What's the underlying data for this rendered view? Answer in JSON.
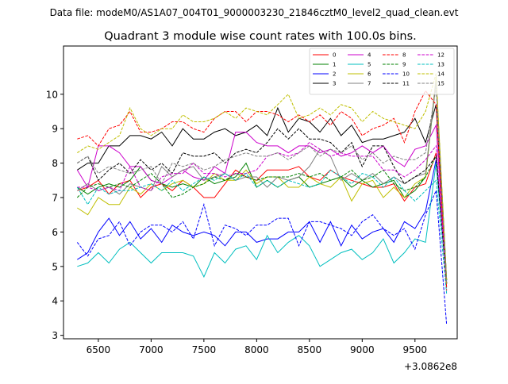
{
  "figure": {
    "suptitle": "Data file: modeM0/AS1A07_004T01_9000003230_21846cztM0_level2_quad_clean.evt"
  },
  "chart_data": {
    "type": "line",
    "title": "Quadrant 3 module wise count rates with 100.0s bins.",
    "xlabel": "",
    "ylabel": "",
    "x_offset_label": "+3.0862e8",
    "xlim": [
      6170,
      9900
    ],
    "ylim": [
      2.9,
      11.4
    ],
    "x_ticks": [
      6500,
      7000,
      7500,
      8000,
      8500,
      9000,
      9500
    ],
    "y_ticks": [
      3,
      4,
      5,
      6,
      7,
      8,
      9,
      10
    ],
    "grid": false,
    "legend_position": "top-right",
    "x": [
      6300,
      6400,
      6500,
      6600,
      6700,
      6800,
      6900,
      7000,
      7100,
      7200,
      7300,
      7400,
      7500,
      7600,
      7700,
      7800,
      7900,
      8000,
      8100,
      8200,
      8300,
      8400,
      8500,
      8600,
      8700,
      8800,
      8900,
      9000,
      9100,
      9200,
      9300,
      9400,
      9500,
      9600,
      9700,
      9800
    ],
    "series": [
      {
        "name": "0",
        "color": "#ff0000",
        "dash": "solid",
        "values": [
          7.2,
          7.3,
          7.5,
          7.1,
          7.4,
          7.5,
          7.0,
          7.3,
          7.4,
          7.2,
          7.5,
          7.3,
          7.0,
          7.0,
          7.4,
          7.8,
          7.6,
          7.5,
          7.8,
          7.8,
          7.8,
          7.9,
          7.6,
          7.5,
          7.8,
          7.6,
          7.5,
          7.4,
          7.3,
          7.3,
          7.4,
          6.9,
          7.3,
          7.4,
          8.3,
          4.4
        ]
      },
      {
        "name": "1",
        "color": "#008000",
        "dash": "solid",
        "values": [
          7.3,
          7.1,
          7.3,
          7.4,
          7.3,
          7.5,
          7.9,
          7.5,
          7.4,
          7.3,
          7.4,
          7.3,
          7.6,
          7.4,
          7.5,
          7.6,
          8.0,
          7.3,
          7.5,
          7.3,
          7.5,
          7.6,
          7.3,
          7.4,
          7.5,
          7.6,
          7.3,
          7.5,
          7.3,
          7.4,
          7.5,
          7.0,
          7.2,
          7.6,
          10.4,
          4.6
        ]
      },
      {
        "name": "2",
        "color": "#0000ff",
        "dash": "solid",
        "values": [
          5.2,
          5.4,
          6.0,
          6.4,
          5.9,
          6.3,
          5.8,
          6.1,
          5.7,
          6.2,
          6.0,
          5.9,
          6.0,
          5.9,
          5.6,
          6.0,
          6.0,
          5.7,
          5.8,
          5.8,
          6.0,
          6.0,
          6.3,
          5.7,
          6.3,
          5.6,
          6.2,
          5.8,
          6.0,
          6.1,
          5.7,
          6.3,
          6.1,
          6.6,
          8.1,
          4.5
        ]
      },
      {
        "name": "3",
        "color": "#000000",
        "dash": "solid",
        "values": [
          7.8,
          8.0,
          8.0,
          8.5,
          8.5,
          8.8,
          8.8,
          8.7,
          8.9,
          8.5,
          9.0,
          8.7,
          8.7,
          8.9,
          9.0,
          8.8,
          8.9,
          9.1,
          8.8,
          9.6,
          8.9,
          9.3,
          9.2,
          8.9,
          9.3,
          8.8,
          9.1,
          8.6,
          8.7,
          8.7,
          8.8,
          8.9,
          9.3,
          8.6,
          9.7,
          4.5
        ]
      },
      {
        "name": "4",
        "color": "#cc00cc",
        "dash": "solid",
        "values": [
          7.8,
          7.3,
          8.5,
          8.5,
          8.3,
          7.9,
          7.9,
          7.5,
          7.4,
          7.6,
          7.8,
          7.6,
          7.5,
          7.9,
          7.7,
          8.9,
          8.9,
          8.6,
          8.5,
          8.5,
          8.3,
          8.5,
          8.5,
          8.3,
          8.4,
          8.2,
          8.3,
          8.5,
          8.3,
          8.5,
          8.1,
          7.9,
          8.4,
          8.5,
          9.1,
          4.5
        ]
      },
      {
        "name": "5",
        "color": "#00bfbf",
        "dash": "solid",
        "values": [
          5.0,
          5.1,
          5.4,
          5.1,
          5.5,
          5.7,
          5.4,
          5.1,
          5.4,
          5.4,
          5.4,
          5.3,
          4.7,
          5.4,
          5.1,
          5.5,
          5.6,
          5.2,
          5.9,
          5.4,
          5.7,
          5.9,
          5.6,
          5.0,
          5.2,
          5.4,
          5.5,
          5.2,
          5.4,
          5.8,
          5.1,
          5.4,
          5.8,
          5.7,
          8.0,
          4.5
        ]
      },
      {
        "name": "6",
        "color": "#bfbf00",
        "dash": "solid",
        "values": [
          6.7,
          6.5,
          7.0,
          6.8,
          6.8,
          7.3,
          7.1,
          7.4,
          7.2,
          7.4,
          7.5,
          7.3,
          7.4,
          7.7,
          7.5,
          7.5,
          7.8,
          7.4,
          7.6,
          7.6,
          7.3,
          7.3,
          7.6,
          7.4,
          7.3,
          7.6,
          6.9,
          7.4,
          7.5,
          7.0,
          7.3,
          7.0,
          7.4,
          7.6,
          10.5,
          4.6
        ]
      },
      {
        "name": "7",
        "color": "#808080",
        "dash": "solid",
        "values": [
          7.2,
          7.4,
          7.2,
          7.3,
          7.1,
          7.4,
          7.3,
          7.2,
          7.9,
          7.6,
          7.8,
          7.9,
          7.5,
          7.6,
          7.7,
          7.5,
          7.6,
          7.6,
          7.3,
          7.6,
          7.5,
          7.6,
          7.9,
          8.4,
          8.2,
          7.5,
          7.7,
          7.5,
          7.7,
          7.4,
          7.6,
          7.4,
          7.6,
          7.7,
          10.4,
          4.6
        ]
      },
      {
        "name": "8",
        "color": "#ff0000",
        "dash": "dashed",
        "values": [
          8.7,
          8.8,
          8.5,
          9.0,
          9.1,
          9.5,
          8.9,
          8.9,
          9.0,
          9.2,
          9.2,
          9.0,
          8.9,
          9.3,
          9.5,
          9.5,
          9.2,
          9.5,
          9.5,
          9.4,
          9.2,
          9.4,
          9.2,
          9.4,
          9.1,
          9.5,
          9.3,
          8.8,
          9.0,
          9.1,
          9.3,
          8.6,
          9.5,
          10.1,
          9.7,
          4.3
        ]
      },
      {
        "name": "9",
        "color": "#008000",
        "dash": "dashed",
        "values": [
          7.0,
          7.3,
          7.4,
          7.3,
          7.4,
          7.3,
          7.5,
          7.7,
          7.4,
          7.0,
          7.1,
          7.3,
          7.4,
          7.6,
          7.5,
          7.7,
          7.6,
          7.5,
          7.6,
          7.6,
          7.6,
          7.7,
          7.6,
          7.7,
          7.5,
          7.6,
          7.8,
          7.5,
          7.6,
          7.8,
          7.4,
          7.2,
          7.3,
          7.6,
          8.2,
          4.6
        ]
      },
      {
        "name": "10",
        "color": "#0000ff",
        "dash": "dashed",
        "values": [
          5.7,
          5.3,
          5.8,
          5.9,
          6.3,
          5.6,
          6.0,
          6.2,
          6.2,
          6.0,
          6.3,
          5.8,
          6.8,
          5.6,
          6.2,
          6.1,
          5.9,
          6.2,
          6.2,
          6.4,
          6.4,
          5.6,
          6.3,
          6.3,
          6.2,
          6.1,
          5.9,
          6.3,
          6.5,
          6.1,
          5.9,
          6.1,
          5.5,
          6.5,
          7.2,
          3.3
        ]
      },
      {
        "name": "11",
        "color": "#000000",
        "dash": "dashed",
        "values": [
          8.0,
          8.2,
          7.5,
          7.8,
          8.0,
          7.7,
          8.1,
          7.8,
          8.0,
          7.7,
          8.3,
          8.2,
          8.2,
          8.3,
          8.0,
          8.3,
          8.4,
          8.3,
          8.6,
          9.0,
          8.7,
          9.0,
          8.7,
          8.7,
          8.6,
          8.3,
          8.6,
          7.9,
          8.5,
          8.5,
          7.9,
          7.4,
          7.6,
          7.8,
          8.2,
          4.5
        ]
      },
      {
        "name": "12",
        "color": "#cc00cc",
        "dash": "dashed",
        "values": [
          7.3,
          7.3,
          7.2,
          7.3,
          7.2,
          7.9,
          7.3,
          7.2,
          7.6,
          7.7,
          7.7,
          8.0,
          7.7,
          7.7,
          7.6,
          7.7,
          7.7,
          7.8,
          8.2,
          8.3,
          8.2,
          8.3,
          8.6,
          8.4,
          8.2,
          8.3,
          8.2,
          8.2,
          8.2,
          7.8,
          7.8,
          7.6,
          7.8,
          8.1,
          8.5,
          4.5
        ]
      },
      {
        "name": "13",
        "color": "#00bfbf",
        "dash": "dashed",
        "values": [
          7.3,
          6.8,
          7.3,
          7.1,
          7.2,
          7.2,
          7.3,
          7.4,
          7.2,
          7.5,
          7.2,
          7.4,
          7.6,
          7.5,
          7.7,
          7.5,
          7.7,
          7.3,
          7.5,
          7.3,
          7.5,
          7.4,
          7.3,
          7.4,
          7.8,
          7.6,
          7.4,
          7.7,
          7.6,
          7.3,
          7.6,
          7.2,
          6.9,
          7.2,
          7.5,
          4.2
        ]
      },
      {
        "name": "14",
        "color": "#bfbf00",
        "dash": "dashed",
        "values": [
          8.3,
          8.5,
          8.4,
          8.6,
          8.8,
          9.6,
          9.0,
          8.8,
          9.0,
          9.0,
          9.4,
          9.2,
          9.2,
          9.3,
          9.5,
          9.3,
          9.6,
          9.5,
          9.4,
          9.7,
          10.0,
          9.3,
          9.4,
          9.6,
          9.4,
          9.7,
          9.6,
          9.2,
          9.5,
          9.3,
          9.2,
          9.1,
          9.0,
          9.5,
          10.6,
          4.5
        ]
      },
      {
        "name": "15",
        "color": "#808080",
        "dash": "dashed",
        "values": [
          8.0,
          8.2,
          7.7,
          7.9,
          7.8,
          7.7,
          7.8,
          7.9,
          7.4,
          8.0,
          7.9,
          8.0,
          7.8,
          7.9,
          8.1,
          8.2,
          8.3,
          8.2,
          8.2,
          8.3,
          8.1,
          8.3,
          8.5,
          8.2,
          8.4,
          8.3,
          8.5,
          8.1,
          8.3,
          8.0,
          8.2,
          8.1,
          8.1,
          8.3,
          10.2,
          4.5
        ]
      }
    ]
  }
}
